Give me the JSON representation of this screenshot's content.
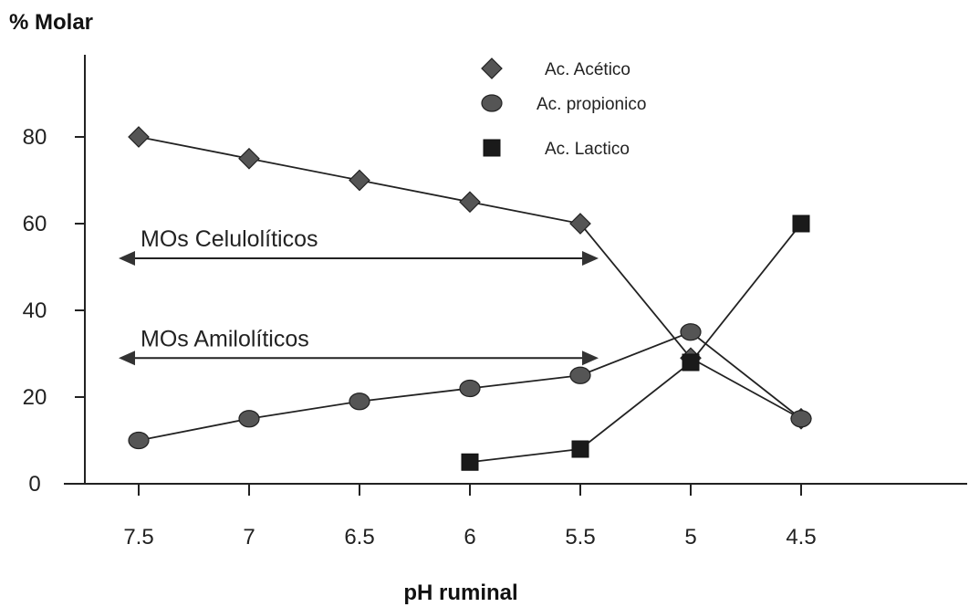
{
  "chart_data": {
    "type": "line",
    "ylabel": "% Molar",
    "xlabel": "pH ruminal",
    "categories": [
      "7.5",
      "7",
      "6.5",
      "6",
      "5.5",
      "5",
      "4.5"
    ],
    "yticks": [
      0,
      20,
      40,
      60,
      80
    ],
    "ylim": [
      0,
      100
    ],
    "grid": false,
    "legend_position": "top-center",
    "series": [
      {
        "name": "Ac. Acético",
        "marker": "diamond",
        "color": "#555555",
        "values": [
          80,
          75,
          70,
          65,
          60,
          29,
          15
        ]
      },
      {
        "name": "Ac. propionico",
        "marker": "circle",
        "color": "#555555",
        "values": [
          10,
          15,
          19,
          22,
          25,
          35,
          15
        ]
      },
      {
        "name": "Ac. Lactico",
        "marker": "square",
        "color": "#1a1a1a",
        "values": [
          null,
          null,
          null,
          5,
          8,
          28,
          60
        ]
      }
    ],
    "annotations": [
      {
        "text": "MOs Celulolíticos",
        "from_x": "7.5",
        "to_x": "5.5",
        "y": 52
      },
      {
        "text": "MOs Amilolíticos",
        "from_x": "7.5",
        "to_x": "5.5",
        "y": 29
      }
    ]
  }
}
